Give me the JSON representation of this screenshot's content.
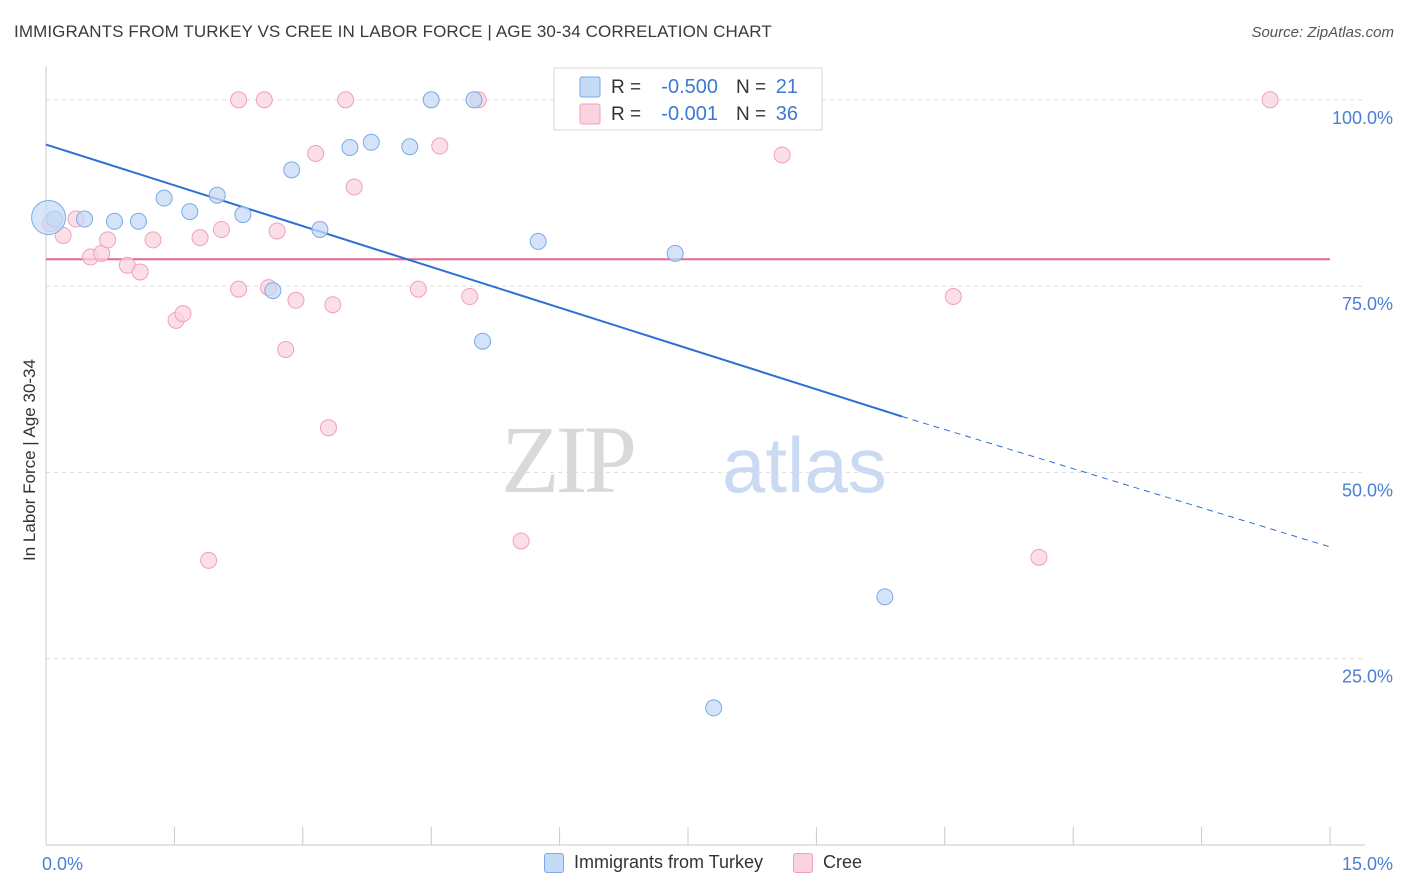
{
  "title": "IMMIGRANTS FROM TURKEY VS CREE IN LABOR FORCE | AGE 30-34 CORRELATION CHART",
  "source": "Source: ZipAtlas.com",
  "watermark": {
    "zip": "ZIP",
    "atlas": "atlas"
  },
  "chart_data": {
    "type": "scatter",
    "title": "IMMIGRANTS FROM TURKEY VS CREE IN LABOR FORCE | AGE 30-34 CORRELATION CHART",
    "xlabel": "",
    "ylabel": "In Labor Force | Age 30-34",
    "xlim": [
      0,
      15
    ],
    "ylim": [
      0,
      104
    ],
    "x_tick_labels": [
      "0.0%",
      "15.0%"
    ],
    "y_ticks": [
      25,
      50,
      75,
      100
    ],
    "y_tick_labels": [
      "25.0%",
      "50.0%",
      "75.0%",
      "100.0%"
    ],
    "grid": true,
    "legend_position": "top-center",
    "series": [
      {
        "name": "Immigrants from Turkey",
        "color": "#7aaae8",
        "fill": "#c5daf5",
        "line_color": "#2f6fd1",
        "R": "-0.500",
        "N": "21",
        "points": [
          [
            0.1,
            84.0
          ],
          [
            0.45,
            84.0
          ],
          [
            0.8,
            83.7
          ],
          [
            1.08,
            83.7
          ],
          [
            1.38,
            86.8
          ],
          [
            1.68,
            85.0
          ],
          [
            2.0,
            87.2
          ],
          [
            2.3,
            84.6
          ],
          [
            2.65,
            74.4
          ],
          [
            2.87,
            90.6
          ],
          [
            3.2,
            82.6
          ],
          [
            3.55,
            93.6
          ],
          [
            3.8,
            94.3
          ],
          [
            4.25,
            93.7
          ],
          [
            4.5,
            100.0
          ],
          [
            5.0,
            100.0
          ],
          [
            5.1,
            67.6
          ],
          [
            5.75,
            81.0
          ],
          [
            7.35,
            79.4
          ],
          [
            9.8,
            33.3
          ],
          [
            7.8,
            18.4
          ]
        ],
        "trend": {
          "x0": 0.0,
          "y0": 94.0,
          "x1": 10.0,
          "y1": 57.5,
          "dash_x1": 15.0,
          "dash_y1": 40.0
        }
      },
      {
        "name": "Cree",
        "color": "#f0a0bb",
        "fill": "#fbd3e0",
        "line_color": "#e8668e",
        "R": "-0.001",
        "N": "36",
        "points": [
          [
            0.05,
            83.4
          ],
          [
            0.2,
            81.8
          ],
          [
            0.35,
            84.0
          ],
          [
            0.52,
            78.9
          ],
          [
            0.65,
            79.4
          ],
          [
            0.72,
            81.2
          ],
          [
            0.95,
            77.8
          ],
          [
            1.1,
            76.9
          ],
          [
            1.25,
            81.2
          ],
          [
            1.52,
            70.4
          ],
          [
            1.6,
            71.3
          ],
          [
            1.8,
            81.5
          ],
          [
            1.9,
            38.2
          ],
          [
            2.05,
            82.6
          ],
          [
            2.25,
            74.6
          ],
          [
            2.25,
            100.0
          ],
          [
            2.55,
            100.0
          ],
          [
            2.6,
            74.8
          ],
          [
            2.7,
            82.4
          ],
          [
            2.8,
            66.5
          ],
          [
            2.92,
            73.1
          ],
          [
            3.15,
            92.8
          ],
          [
            3.3,
            56.0
          ],
          [
            3.35,
            72.5
          ],
          [
            3.5,
            100.0
          ],
          [
            3.6,
            88.3
          ],
          [
            4.35,
            74.6
          ],
          [
            4.6,
            93.8
          ],
          [
            4.95,
            73.6
          ],
          [
            5.05,
            100.0
          ],
          [
            5.55,
            40.8
          ],
          [
            8.6,
            92.6
          ],
          [
            8.85,
            100.0
          ],
          [
            10.6,
            73.6
          ],
          [
            11.6,
            38.6
          ],
          [
            14.3,
            100.0
          ]
        ],
        "trend": {
          "x0": 0.0,
          "y0": 78.6,
          "x1": 15.0,
          "y1": 78.6
        }
      }
    ],
    "big_point": {
      "series": 0,
      "x": 0.03,
      "y": 84.2
    }
  },
  "legend": {
    "r_label": "R =",
    "n_label": "N ="
  }
}
